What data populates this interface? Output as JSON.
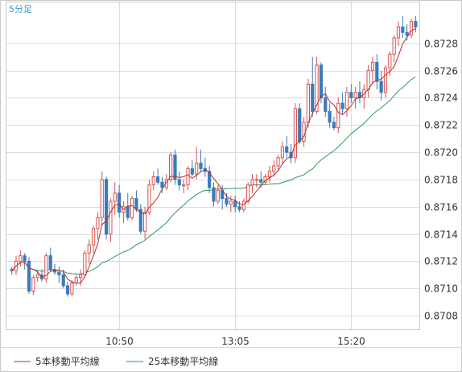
{
  "chart_data": {
    "type": "candlestick",
    "timeframe_label": "5分足",
    "ylim": [
      0.8707,
      0.8731
    ],
    "y_ticks": [
      "0.8708",
      "0.8710",
      "0.8712",
      "0.8714",
      "0.8716",
      "0.8718",
      "0.8720",
      "0.8722",
      "0.8724",
      "0.8726",
      "0.8728"
    ],
    "x_tick_labels": [
      {
        "label": "10:50",
        "index": 25
      },
      {
        "label": "13:05",
        "index": 52
      },
      {
        "label": "15:20",
        "index": 79
      }
    ],
    "grid": true,
    "legend_position": "bottom-left",
    "colors": {
      "up": "#d9534f",
      "down": "#3b7bbf",
      "ma5": "#b03030",
      "ma25": "#2e9a5a",
      "grid": "#dcdcdc",
      "frame": "#c9c9c9"
    },
    "candles": [
      [
        0.87114,
        0.87116,
        0.8711,
        0.87113
      ],
      [
        0.87113,
        0.87124,
        0.8711,
        0.8712
      ],
      [
        0.8712,
        0.87128,
        0.87116,
        0.87124
      ],
      [
        0.87124,
        0.87126,
        0.87114,
        0.8712
      ],
      [
        0.8712,
        0.87123,
        0.87096,
        0.87098
      ],
      [
        0.87098,
        0.8711,
        0.87095,
        0.87108
      ],
      [
        0.87108,
        0.87114,
        0.87105,
        0.8711
      ],
      [
        0.8711,
        0.87114,
        0.87105,
        0.87107
      ],
      [
        0.87107,
        0.87126,
        0.87104,
        0.87124
      ],
      [
        0.87124,
        0.8713,
        0.87112,
        0.87114
      ],
      [
        0.87114,
        0.87118,
        0.8711,
        0.87112
      ],
      [
        0.87112,
        0.87116,
        0.87104,
        0.8711
      ],
      [
        0.8711,
        0.87114,
        0.871,
        0.87102
      ],
      [
        0.87102,
        0.87105,
        0.87094,
        0.87096
      ],
      [
        0.87096,
        0.87106,
        0.87094,
        0.87104
      ],
      [
        0.87104,
        0.8711,
        0.87102,
        0.87108
      ],
      [
        0.87108,
        0.87114,
        0.87102,
        0.8711
      ],
      [
        0.8711,
        0.87128,
        0.87108,
        0.87126
      ],
      [
        0.87126,
        0.87136,
        0.87118,
        0.87132
      ],
      [
        0.87132,
        0.87146,
        0.87126,
        0.87144
      ],
      [
        0.87144,
        0.87156,
        0.87136,
        0.87152
      ],
      [
        0.87152,
        0.87186,
        0.87146,
        0.8718
      ],
      [
        0.8718,
        0.87182,
        0.87136,
        0.8714
      ],
      [
        0.8714,
        0.87166,
        0.87134,
        0.87164
      ],
      [
        0.87164,
        0.87178,
        0.87154,
        0.8717
      ],
      [
        0.8717,
        0.87176,
        0.87152,
        0.87156
      ],
      [
        0.87156,
        0.87164,
        0.87148,
        0.8716
      ],
      [
        0.8716,
        0.8717,
        0.8715,
        0.87152
      ],
      [
        0.87152,
        0.87168,
        0.8715,
        0.87166
      ],
      [
        0.87166,
        0.87172,
        0.87156,
        0.87158
      ],
      [
        0.87158,
        0.87162,
        0.8714,
        0.87142
      ],
      [
        0.87142,
        0.8716,
        0.87136,
        0.87156
      ],
      [
        0.87156,
        0.8718,
        0.87154,
        0.87176
      ],
      [
        0.87176,
        0.87186,
        0.87172,
        0.87182
      ],
      [
        0.87182,
        0.87188,
        0.87176,
        0.87178
      ],
      [
        0.87178,
        0.87182,
        0.8717,
        0.87174
      ],
      [
        0.87174,
        0.87184,
        0.87172,
        0.8718
      ],
      [
        0.8718,
        0.872,
        0.87178,
        0.87198
      ],
      [
        0.87198,
        0.87202,
        0.87176,
        0.8718
      ],
      [
        0.8718,
        0.87186,
        0.87172,
        0.87176
      ],
      [
        0.87176,
        0.8718,
        0.8717,
        0.87176
      ],
      [
        0.87176,
        0.8719,
        0.87172,
        0.87188
      ],
      [
        0.87188,
        0.87194,
        0.87182,
        0.87184
      ],
      [
        0.87184,
        0.87204,
        0.8718,
        0.87192
      ],
      [
        0.87192,
        0.87202,
        0.87186,
        0.87188
      ],
      [
        0.87188,
        0.87196,
        0.87182,
        0.87186
      ],
      [
        0.87186,
        0.8719,
        0.8717,
        0.87174
      ],
      [
        0.87174,
        0.87178,
        0.8716,
        0.87164
      ],
      [
        0.87164,
        0.87176,
        0.87162,
        0.87172
      ],
      [
        0.87172,
        0.87176,
        0.87158,
        0.87166
      ],
      [
        0.87166,
        0.8717,
        0.8716,
        0.87162
      ],
      [
        0.87162,
        0.87168,
        0.87156,
        0.87164
      ],
      [
        0.87164,
        0.87168,
        0.87156,
        0.8716
      ],
      [
        0.8716,
        0.87164,
        0.87156,
        0.87158
      ],
      [
        0.87158,
        0.87166,
        0.87156,
        0.87164
      ],
      [
        0.87164,
        0.87178,
        0.87162,
        0.87176
      ],
      [
        0.87176,
        0.87184,
        0.8717,
        0.8718
      ],
      [
        0.8718,
        0.87184,
        0.87174,
        0.8718
      ],
      [
        0.8718,
        0.87186,
        0.87174,
        0.87178
      ],
      [
        0.87178,
        0.87184,
        0.87176,
        0.87182
      ],
      [
        0.87182,
        0.8719,
        0.87178,
        0.87186
      ],
      [
        0.87186,
        0.87194,
        0.87182,
        0.8719
      ],
      [
        0.8719,
        0.87198,
        0.87186,
        0.87196
      ],
      [
        0.87196,
        0.87208,
        0.87192,
        0.87204
      ],
      [
        0.87204,
        0.87212,
        0.87196,
        0.872
      ],
      [
        0.872,
        0.87206,
        0.87192,
        0.87196
      ],
      [
        0.87196,
        0.87236,
        0.87192,
        0.87232
      ],
      [
        0.87232,
        0.87236,
        0.87206,
        0.87208
      ],
      [
        0.87208,
        0.87226,
        0.87204,
        0.87222
      ],
      [
        0.87222,
        0.87254,
        0.87218,
        0.8725
      ],
      [
        0.8725,
        0.8727,
        0.87226,
        0.8723
      ],
      [
        0.8723,
        0.8727,
        0.87228,
        0.87264
      ],
      [
        0.87264,
        0.87266,
        0.87236,
        0.8724
      ],
      [
        0.8724,
        0.87248,
        0.87226,
        0.8723
      ],
      [
        0.8723,
        0.87236,
        0.87218,
        0.87222
      ],
      [
        0.87222,
        0.87226,
        0.87216,
        0.87218
      ],
      [
        0.87218,
        0.8724,
        0.87214,
        0.87236
      ],
      [
        0.87236,
        0.87244,
        0.87228,
        0.87232
      ],
      [
        0.87232,
        0.87248,
        0.87226,
        0.87244
      ],
      [
        0.87244,
        0.8725,
        0.87236,
        0.8724
      ],
      [
        0.8724,
        0.87248,
        0.87232,
        0.87244
      ],
      [
        0.87244,
        0.87252,
        0.87236,
        0.8724
      ],
      [
        0.8724,
        0.8725,
        0.87232,
        0.87246
      ],
      [
        0.87246,
        0.87264,
        0.8724,
        0.8726
      ],
      [
        0.8726,
        0.8727,
        0.8725,
        0.87266
      ],
      [
        0.87266,
        0.87272,
        0.87246,
        0.87252
      ],
      [
        0.87252,
        0.8726,
        0.87238,
        0.87244
      ],
      [
        0.87244,
        0.87264,
        0.8724,
        0.87262
      ],
      [
        0.87262,
        0.87274,
        0.87256,
        0.87272
      ],
      [
        0.87272,
        0.87286,
        0.87266,
        0.87284
      ],
      [
        0.87284,
        0.87296,
        0.87278,
        0.87292
      ],
      [
        0.87292,
        0.873,
        0.87284,
        0.87288
      ],
      [
        0.87288,
        0.87294,
        0.87282,
        0.87286
      ],
      [
        0.87286,
        0.87298,
        0.87284,
        0.87296
      ],
      [
        0.87296,
        0.873,
        0.87288,
        0.87292
      ]
    ],
    "series": [
      {
        "name": "5本移動平均線",
        "color": "#b03030",
        "period": 5
      },
      {
        "name": "25本移動平均線",
        "color": "#2e9a5a",
        "period": 25
      }
    ]
  }
}
